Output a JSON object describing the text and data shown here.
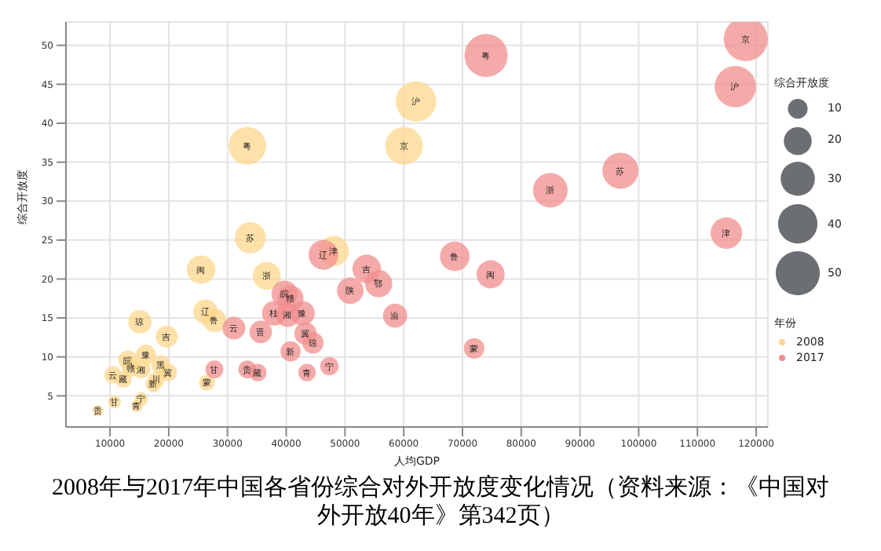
{
  "chart_data": {
    "type": "bubble",
    "title": "2008年与2017年中国各省份综合对外开放度变化情况（资料来源：《中国对外开放40年》第342页）",
    "xlabel": "人均GDP",
    "ylabel": "综合开放度",
    "legend_title": "年份",
    "legend": "right",
    "grid": true,
    "xlim": [
      2500,
      122000
    ],
    "ylim": [
      1,
      53
    ],
    "xticks": [
      10000,
      20000,
      30000,
      40000,
      50000,
      60000,
      70000,
      80000,
      90000,
      100000,
      110000,
      120000
    ],
    "yticks": [
      5,
      10,
      15,
      20,
      25,
      30,
      35,
      40,
      45,
      50
    ],
    "size_legend": [
      10,
      20,
      30,
      40,
      50
    ],
    "series": [
      {
        "name": "2008",
        "color": "#fdd78c",
        "x": [
          33370,
          62080,
          60050,
          33880,
          48110,
          25500,
          36680,
          26260,
          27780,
          15080,
          19650,
          26510,
          15330,
          14570,
          10760,
          7970,
          13050,
          16100,
          18640,
          19910,
          10510,
          12290,
          15330,
          17370,
          17880,
          13560
        ],
        "values": [
          37.1,
          42.8,
          37.1,
          25.3,
          23.6,
          21.2,
          20.4,
          15.8,
          14.7,
          14.5,
          12.6,
          6.7,
          4.6,
          3.7,
          4.2,
          3.1,
          9.6,
          10.3,
          9.0,
          8.0,
          7.7,
          7.1,
          8.4,
          6.5,
          7.1,
          8.6
        ],
        "sizes": [
          37.1,
          42.8,
          37.1,
          25.3,
          23.6,
          21.2,
          20.4,
          15.8,
          14.7,
          14.5,
          12.6,
          6.7,
          4.6,
          3.7,
          4.2,
          3.1,
          9.6,
          10.3,
          9.0,
          8.0,
          7.7,
          7.1,
          8.4,
          6.5,
          7.1,
          8.6
        ]
      },
      {
        "name": "2017",
        "color": "#f28e8e",
        "x": [
          118230,
          116450,
          74020,
          96890,
          84950,
          114930,
          68690,
          74790,
          71990,
          58530,
          53700,
          55730,
          50900,
          46330,
          39730,
          40740,
          37950,
          40230,
          42770,
          31090,
          35660,
          43280,
          44550,
          40740,
          27780,
          33370,
          35150,
          43540,
          47350
        ],
        "values": [
          50.8,
          44.7,
          48.7,
          33.9,
          31.4,
          25.9,
          22.9,
          20.6,
          11.1,
          15.3,
          21.3,
          19.4,
          18.5,
          23.1,
          18.1,
          17.5,
          15.6,
          15.4,
          15.6,
          13.7,
          13.2,
          13.0,
          11.8,
          10.7,
          8.4,
          8.4,
          8.0,
          8.0,
          8.8
        ],
        "sizes": [
          50.8,
          44.7,
          48.7,
          33.9,
          31.4,
          25.9,
          22.9,
          20.6,
          11.1,
          15.3,
          21.3,
          19.4,
          18.5,
          23.1,
          18.1,
          17.5,
          15.6,
          15.4,
          15.6,
          13.7,
          13.2,
          13.0,
          11.8,
          10.7,
          8.4,
          8.4,
          8.0,
          8.0,
          8.8
        ]
      }
    ],
    "annotations": [
      {
        "text": "粤",
        "x": 33370,
        "y": 37.1
      },
      {
        "text": "沪",
        "x": 62080,
        "y": 42.8
      },
      {
        "text": "京",
        "x": 60050,
        "y": 37.1
      },
      {
        "text": "苏",
        "x": 33880,
        "y": 25.3
      },
      {
        "text": "津",
        "x": 48110,
        "y": 23.6
      },
      {
        "text": "闽",
        "x": 25500,
        "y": 21.2
      },
      {
        "text": "浙",
        "x": 36680,
        "y": 20.4
      },
      {
        "text": "辽",
        "x": 26260,
        "y": 15.8
      },
      {
        "text": "鲁",
        "x": 27780,
        "y": 14.7
      },
      {
        "text": "琼",
        "x": 15080,
        "y": 14.5
      },
      {
        "text": "吉",
        "x": 19650,
        "y": 12.6
      },
      {
        "text": "蒙",
        "x": 26510,
        "y": 6.7
      },
      {
        "text": "宁",
        "x": 15330,
        "y": 4.6
      },
      {
        "text": "青",
        "x": 14570,
        "y": 3.7
      },
      {
        "text": "甘",
        "x": 10760,
        "y": 4.2
      },
      {
        "text": "贵",
        "x": 7970,
        "y": 3.1
      },
      {
        "text": "皖",
        "x": 13050,
        "y": 9.6
      },
      {
        "text": "豫",
        "x": 16100,
        "y": 10.3
      },
      {
        "text": "黑",
        "x": 18640,
        "y": 9.0
      },
      {
        "text": "冀",
        "x": 19910,
        "y": 8.0
      },
      {
        "text": "云",
        "x": 10510,
        "y": 7.7
      },
      {
        "text": "藏",
        "x": 12290,
        "y": 7.1
      },
      {
        "text": "湘",
        "x": 15330,
        "y": 8.4
      },
      {
        "text": "新",
        "x": 17370,
        "y": 6.5
      },
      {
        "text": "川",
        "x": 17880,
        "y": 7.1
      },
      {
        "text": "赣",
        "x": 13560,
        "y": 8.6
      },
      {
        "text": "京",
        "x": 118230,
        "y": 50.8
      },
      {
        "text": "沪",
        "x": 116450,
        "y": 44.7
      },
      {
        "text": "粤",
        "x": 74020,
        "y": 48.7
      },
      {
        "text": "苏",
        "x": 96890,
        "y": 33.9
      },
      {
        "text": "浙",
        "x": 84950,
        "y": 31.4
      },
      {
        "text": "津",
        "x": 114930,
        "y": 25.9
      },
      {
        "text": "鲁",
        "x": 68690,
        "y": 22.9
      },
      {
        "text": "闽",
        "x": 74790,
        "y": 20.6
      },
      {
        "text": "蒙",
        "x": 71990,
        "y": 11.1
      },
      {
        "text": "渝",
        "x": 58530,
        "y": 15.3
      },
      {
        "text": "吉",
        "x": 53700,
        "y": 21.3
      },
      {
        "text": "鄂",
        "x": 55730,
        "y": 19.4
      },
      {
        "text": "陕",
        "x": 50900,
        "y": 18.5
      },
      {
        "text": "辽",
        "x": 46330,
        "y": 23.1
      },
      {
        "text": "皖",
        "x": 39730,
        "y": 18.1
      },
      {
        "text": "赣",
        "x": 40740,
        "y": 17.5
      },
      {
        "text": "桂",
        "x": 37950,
        "y": 15.6
      },
      {
        "text": "湘",
        "x": 40230,
        "y": 15.4
      },
      {
        "text": "豫",
        "x": 42770,
        "y": 15.6
      },
      {
        "text": "云",
        "x": 31090,
        "y": 13.7
      },
      {
        "text": "晋",
        "x": 35660,
        "y": 13.2
      },
      {
        "text": "冀",
        "x": 43280,
        "y": 13.0
      },
      {
        "text": "琼",
        "x": 44550,
        "y": 11.8
      },
      {
        "text": "新",
        "x": 40740,
        "y": 10.7
      },
      {
        "text": "甘",
        "x": 27780,
        "y": 8.4
      },
      {
        "text": "贵",
        "x": 33370,
        "y": 8.4
      },
      {
        "text": "藏",
        "x": 35150,
        "y": 8.0
      },
      {
        "text": "青",
        "x": 43540,
        "y": 8.0
      },
      {
        "text": "宁",
        "x": 47350,
        "y": 8.8
      }
    ]
  }
}
